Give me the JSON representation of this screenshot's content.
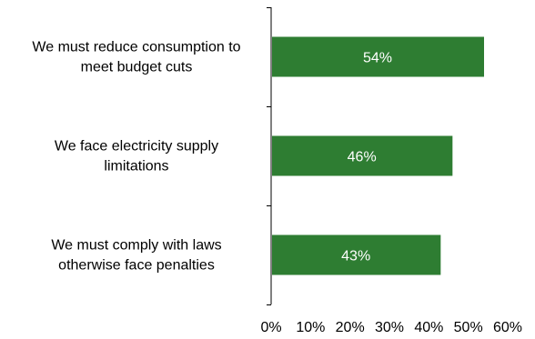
{
  "chart_data": {
    "type": "bar",
    "orientation": "horizontal",
    "categories": [
      [
        "We must reduce consumption to",
        "meet budget cuts"
      ],
      [
        "We face electricity supply",
        "limitations"
      ],
      [
        "We must comply with laws",
        "otherwise face penalties"
      ]
    ],
    "values": [
      54,
      46,
      43
    ],
    "data_labels": [
      "54%",
      "46%",
      "43%"
    ],
    "xlim": [
      0,
      60
    ],
    "x_ticks": [
      0,
      10,
      20,
      30,
      40,
      50,
      60
    ],
    "x_tick_labels": [
      "0%",
      "10%",
      "20%",
      "30%",
      "40%",
      "50%",
      "60%"
    ],
    "bar_color": "#2e7d32",
    "grid": false,
    "title": "",
    "xlabel": "",
    "ylabel": ""
  }
}
